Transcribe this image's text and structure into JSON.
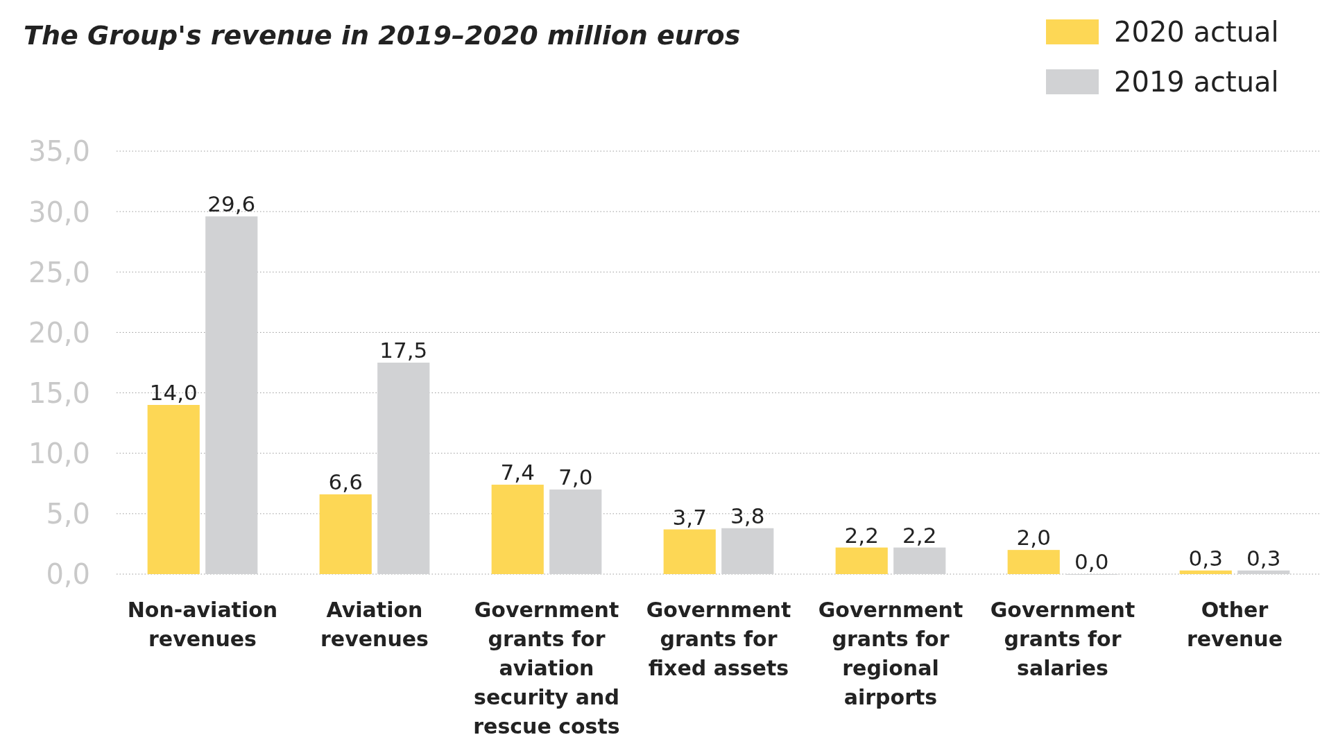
{
  "chart_data": {
    "type": "bar",
    "title": "The Group's revenue in 2019–2020 million euros",
    "categories": [
      "Non-aviation revenues",
      "Aviation revenues",
      "Government grants for aviation security and rescue costs",
      "Government grants for fixed assets",
      "Government grants for regional airports",
      "Government grants for salaries",
      "Other revenue"
    ],
    "series": [
      {
        "name": "2020 actual",
        "color": "#fdd755",
        "values": [
          14.0,
          6.6,
          7.4,
          3.7,
          2.2,
          2.0,
          0.3
        ],
        "value_labels": [
          "14,0",
          "6,6",
          "7,4",
          "3,7",
          "2,2",
          "2,0",
          "0,3"
        ]
      },
      {
        "name": "2019 actual",
        "color": "#d1d2d4",
        "values": [
          29.6,
          17.5,
          7.0,
          3.8,
          2.2,
          0.0,
          0.3
        ],
        "value_labels": [
          "29,6",
          "17,5",
          "7,0",
          "3,8",
          "2,2",
          "0,0",
          "0,3"
        ]
      }
    ],
    "ylim": [
      0,
      35
    ],
    "yticks": [
      {
        "value": 0,
        "label": "0,0"
      },
      {
        "value": 5,
        "label": "5,0"
      },
      {
        "value": 10,
        "label": "10,0"
      },
      {
        "value": 15,
        "label": "15,0"
      },
      {
        "value": 20,
        "label": "20,0"
      },
      {
        "value": 25,
        "label": "25,0"
      },
      {
        "value": 30,
        "label": "30,0"
      },
      {
        "value": 35,
        "label": "35,0"
      }
    ],
    "grid": "y",
    "legend": "top right"
  }
}
